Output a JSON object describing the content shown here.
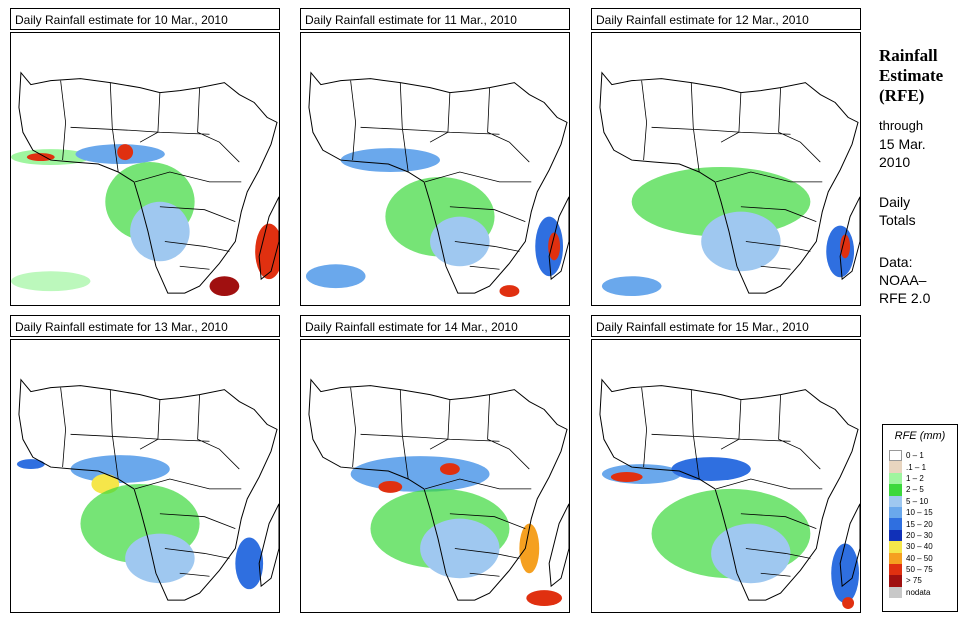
{
  "panels": [
    {
      "title": "Daily Rainfall estimate for  10 Mar., 2010"
    },
    {
      "title": "Daily Rainfall estimate for  11 Mar., 2010"
    },
    {
      "title": "Daily Rainfall estimate for  12 Mar., 2010"
    },
    {
      "title": "Daily Rainfall estimate for  13 Mar., 2010"
    },
    {
      "title": "Daily Rainfall estimate for  14 Mar., 2010"
    },
    {
      "title": "Daily Rainfall estimate for  15 Mar., 2010"
    }
  ],
  "sidebar": {
    "title_line1": "Rainfall",
    "title_line2": "Estimate",
    "title_line3": "(RFE)",
    "through_label": "through",
    "through_date_line1": "15 Mar.",
    "through_date_line2": "2010",
    "totals_line1": "Daily",
    "totals_line2": "Totals",
    "data_label": "Data:",
    "data_source_line1": "NOAA–",
    "data_source_line2": "RFE 2.0"
  },
  "legend": {
    "title": "RFE (mm)",
    "items": [
      {
        "label": "0 – 1",
        "color": "#ffffff"
      },
      {
        "label": ".1 – 1",
        "color": "#e8d5bf"
      },
      {
        "label": "1 – 2",
        "color": "#9ff59f"
      },
      {
        "label": "2 – 5",
        "color": "#3cd83c"
      },
      {
        "label": "5 – 10",
        "color": "#9fc8f0"
      },
      {
        "label": "10 – 15",
        "color": "#6aa8ec"
      },
      {
        "label": "15 – 20",
        "color": "#2f6fe0"
      },
      {
        "label": "20 – 30",
        "color": "#1030b8"
      },
      {
        "label": "30 – 40",
        "color": "#f5e64a"
      },
      {
        "label": "40 – 50",
        "color": "#f5a020"
      },
      {
        "label": "50 – 75",
        "color": "#e03010"
      },
      {
        "label": "> 75",
        "color": "#a01010"
      },
      {
        "label": "nodata",
        "color": "#c8c8c8"
      }
    ]
  }
}
